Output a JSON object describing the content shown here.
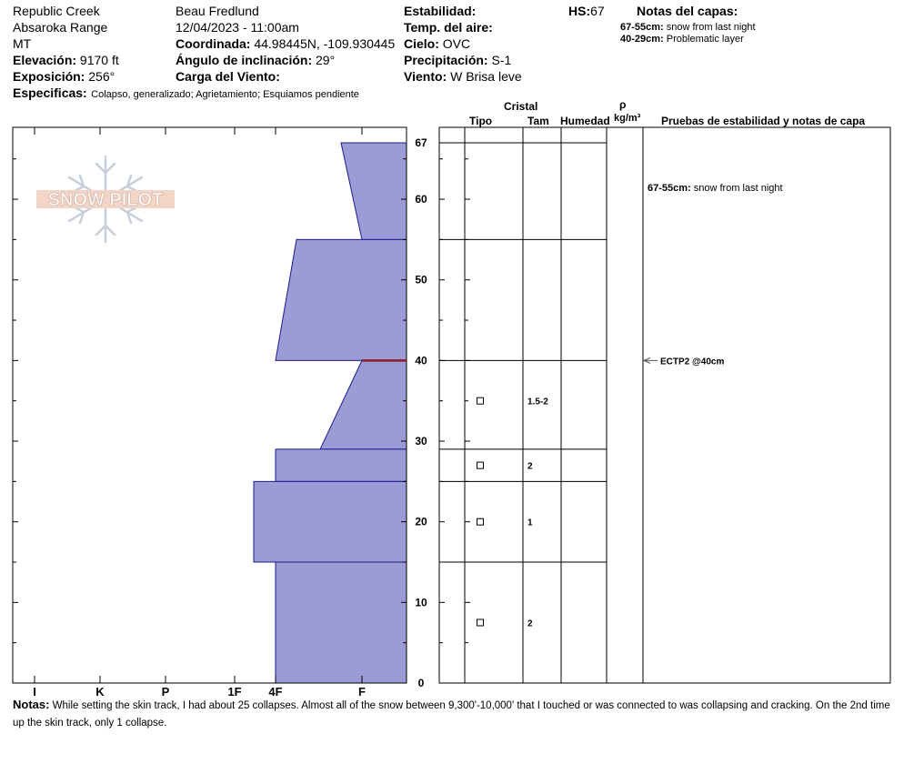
{
  "header": {
    "location": "Republic Creek",
    "range": "Absaroka Range",
    "state": "MT",
    "elevation_label": "Elevación:",
    "elevation_value": "9170 ft",
    "aspect_label": "Exposición:",
    "aspect_value": "256°",
    "observer": "Beau  Fredlund",
    "datetime": "12/04/2023 - 11:00am",
    "coord_label": "Coordinada:",
    "coord_value": "44.98445N, -109.930445",
    "slope_label": "Ángulo de inclinación:",
    "slope_value": "29°",
    "wind_load_label": "Carga del Viento:",
    "wind_load_value": "",
    "stability_label": "Estabilidad:",
    "stability_value": "",
    "air_temp_label": "Temp. del aire:",
    "air_temp_value": "",
    "sky_label": "Cielo:",
    "sky_value": "OVC",
    "precip_label": "Precipitación:",
    "precip_value": "S-1",
    "wind_label": "Viento:",
    "wind_value": "W Brisa leve",
    "hs_label": "HS:",
    "hs_value": "67",
    "layer_notes_title": "Notas del capas:",
    "layer_notes": [
      {
        "range": "67-55cm:",
        "text": "snow from last night"
      },
      {
        "range": "40-29cm:",
        "text": "Problematic layer"
      }
    ],
    "specifics_label": "Especificas:",
    "specifics_value": "Colapso, generalizado; Agrietamiento; Esquiamos pendiente"
  },
  "logo_text": "SNOW PILOT",
  "columns": {
    "crystal": "Cristal",
    "type": "Tipo",
    "size": "Tam",
    "moisture": "Humedad",
    "rho": "ρ",
    "density_unit": "kg/m³",
    "tests": "Pruebas de estabilidad y notas de capa"
  },
  "colors": {
    "profile_fill": "#9b9bd6",
    "profile_stroke": "#1b1b8f",
    "weak_layer": "#8b1a2b"
  },
  "chart_data": {
    "type": "area",
    "xlabel": "",
    "ylabel": "",
    "x_categories": [
      "I",
      "K",
      "P",
      "1F",
      "4F",
      "F"
    ],
    "ylim": [
      0,
      67
    ],
    "y_ticks": [
      0,
      10,
      20,
      30,
      40,
      50,
      60,
      67
    ],
    "hardness_profile": [
      {
        "bottom": 55,
        "top": 67,
        "hardness_bottom": "F",
        "hardness_top": "F-"
      },
      {
        "bottom": 40,
        "top": 55,
        "hardness_bottom": "4F",
        "hardness_top": "F+"
      },
      {
        "bottom": 29,
        "top": 40,
        "hardness_bottom": "4F+",
        "hardness_top": "F"
      },
      {
        "bottom": 25,
        "top": 29,
        "hardness_bottom": "4F",
        "hardness_top": "4F"
      },
      {
        "bottom": 15,
        "top": 25,
        "hardness_bottom": "1F+",
        "hardness_top": "1F+"
      },
      {
        "bottom": 0,
        "top": 15,
        "hardness_bottom": "4F",
        "hardness_top": "4F"
      }
    ],
    "layer_boundaries": [
      67,
      55,
      40,
      29,
      25,
      15
    ],
    "crystals": [
      {
        "depth": 35,
        "size": "1.5-2"
      },
      {
        "depth": 27,
        "size": "2"
      },
      {
        "depth": 20,
        "size": "1"
      },
      {
        "depth": 7.5,
        "size": "2"
      }
    ],
    "layer_comments": [
      {
        "depth": 61.5,
        "range": "67-55cm:",
        "text": "snow from last night"
      }
    ],
    "stability_tests": [
      {
        "depth": 40,
        "label": "ECTP2 @40cm"
      }
    ],
    "weak_layer_depth": 40
  },
  "notes": {
    "label": "Notas:",
    "text": "While setting the skin track, I had about 25 collapses.  Almost all of the snow between 9,300'-10,000' that I touched or was connected to was collapsing and cracking.  On the 2nd time up the skin track, only 1 collapse."
  }
}
